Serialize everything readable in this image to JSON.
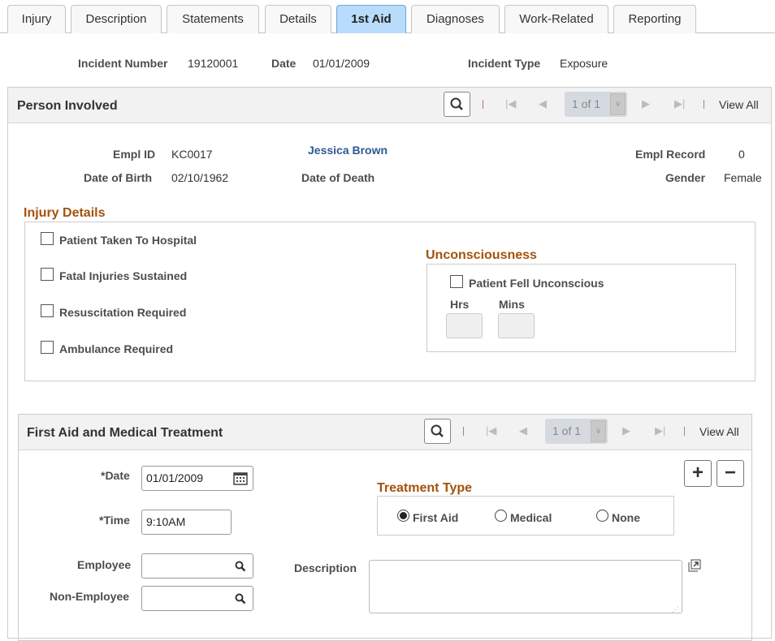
{
  "tabs": [
    {
      "label": "Injury"
    },
    {
      "label": "Description"
    },
    {
      "label": "Statements"
    },
    {
      "label": "Details"
    },
    {
      "label": "1st Aid",
      "active": true
    },
    {
      "label": "Diagnoses"
    },
    {
      "label": "Work-Related"
    },
    {
      "label": "Reporting"
    }
  ],
  "incident": {
    "number_label": "Incident Number",
    "number": "19120001",
    "date_label": "Date",
    "date": "01/01/2009",
    "type_label": "Incident Type",
    "type": "Exposure"
  },
  "person": {
    "title": "Person Involved",
    "pager": "1 of 1",
    "view_all": "View All",
    "empl_id_label": "Empl ID",
    "empl_id": "KC0017",
    "name": "Jessica Brown",
    "empl_record_label": "Empl Record",
    "empl_record": "0",
    "dob_label": "Date of Birth",
    "dob": "02/10/1962",
    "dod_label": "Date of Death",
    "gender_label": "Gender",
    "gender": "Female"
  },
  "injury": {
    "title": "Injury Details",
    "checks": [
      {
        "label": "Patient Taken To Hospital",
        "checked": false
      },
      {
        "label": "Fatal Injuries Sustained",
        "checked": false
      },
      {
        "label": "Resuscitation Required",
        "checked": false
      },
      {
        "label": "Ambulance Required",
        "checked": false
      }
    ],
    "unconscious": {
      "title": "Unconsciousness",
      "check_label": "Patient Fell Unconscious",
      "hrs_label": "Hrs",
      "mins_label": "Mins",
      "hrs": "",
      "mins": ""
    }
  },
  "first_aid": {
    "title": "First Aid and Medical Treatment",
    "pager": "1 of 1",
    "view_all": "View All",
    "date_label": "*Date",
    "date": "01/01/2009",
    "time_label": "*Time",
    "time": "9:10AM",
    "employee_label": "Employee",
    "employee": "",
    "non_employee_label": "Non-Employee",
    "non_employee": "",
    "description_label": "Description",
    "description": "",
    "treatment_title": "Treatment Type",
    "treatment_options": [
      {
        "label": "First Aid",
        "selected": true
      },
      {
        "label": "Medical",
        "selected": false
      },
      {
        "label": "None",
        "selected": false
      }
    ]
  },
  "colors": {
    "active_tab": "#b9dcfc",
    "section_heading": "#a4520c",
    "name_link": "#2e5a93"
  }
}
